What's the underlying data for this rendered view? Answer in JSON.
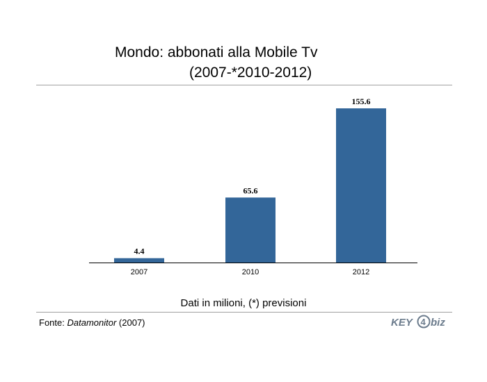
{
  "title": {
    "line1": "Mondo: abbonati alla Mobile Tv",
    "line2": "(2007-*2010-2012)"
  },
  "caption": "Dati in milioni, (*) previsioni",
  "source": {
    "label": "Fonte:",
    "name": "Datamonitor",
    "year": "(2007)"
  },
  "logo": {
    "text_left": "KEY",
    "digit": "4",
    "text_right": "biz"
  },
  "colors": {
    "bar": "#336699",
    "logo": "#6b7b8c"
  },
  "chart_data": {
    "type": "bar",
    "categories": [
      "2007",
      "2010",
      "2012"
    ],
    "values": [
      4.4,
      65.6,
      155.6
    ],
    "data_labels": [
      "4.4",
      "65.6",
      "155.6"
    ],
    "title": "Mondo: abbonati alla Mobile Tv (2007-*2010-2012)",
    "xlabel": "",
    "ylabel": "",
    "ylim": [
      0,
      155.6
    ],
    "grid": false,
    "legend": "none"
  }
}
